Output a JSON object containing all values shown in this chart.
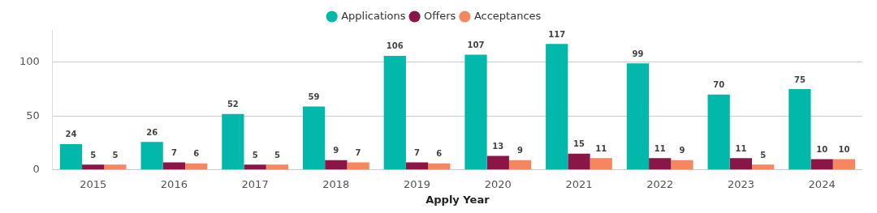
{
  "chart_data": {
    "type": "bar",
    "xlabel": "Apply Year",
    "categories": [
      "2015",
      "2016",
      "2017",
      "2018",
      "2019",
      "2020",
      "2021",
      "2022",
      "2023",
      "2024"
    ],
    "series": [
      {
        "name": "Applications",
        "color": "#01b8aa",
        "values": [
          24,
          26,
          52,
          59,
          106,
          107,
          117,
          99,
          70,
          75
        ]
      },
      {
        "name": "Offers",
        "color": "#8a1547",
        "values": [
          5,
          7,
          5,
          9,
          7,
          13,
          15,
          11,
          11,
          10
        ]
      },
      {
        "name": "Acceptances",
        "color": "#f5865f",
        "values": [
          5,
          6,
          5,
          7,
          6,
          9,
          11,
          9,
          5,
          10
        ]
      }
    ],
    "ylim": [
      0,
      130
    ],
    "yticks": [
      0,
      50,
      100
    ],
    "grid": "y",
    "legend": "top",
    "data_labels": true
  }
}
